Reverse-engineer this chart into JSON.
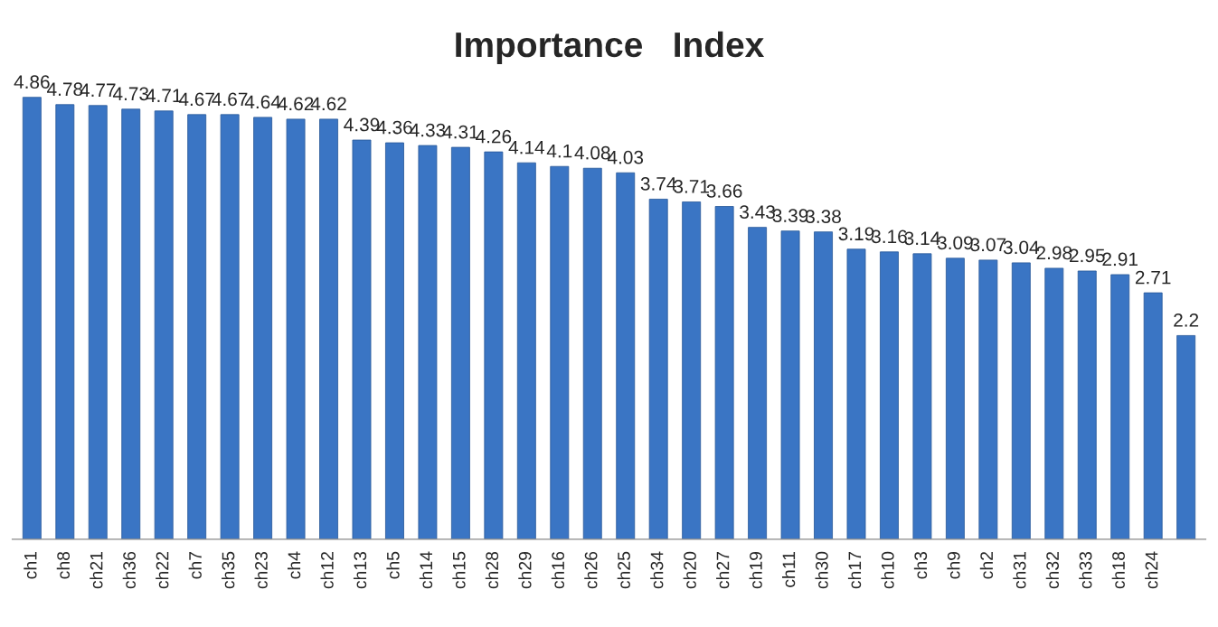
{
  "chart_data": {
    "type": "bar",
    "title": "Importance   Index",
    "categories": [
      "ch1",
      "ch8",
      "ch21",
      "ch36",
      "ch22",
      "ch7",
      "ch35",
      "ch23",
      "ch4",
      "ch12",
      "ch13",
      "ch5",
      "ch14",
      "ch15",
      "ch28",
      "ch29",
      "ch16",
      "ch26",
      "ch25",
      "ch34",
      "ch20",
      "ch27",
      "ch19",
      "ch11",
      "ch30",
      "ch17",
      "ch10",
      "ch3",
      "ch9",
      "ch2",
      "ch31",
      "ch32",
      "ch33",
      "ch18",
      "ch24",
      null
    ],
    "values": [
      4.86,
      4.78,
      4.77,
      4.73,
      4.71,
      4.67,
      4.67,
      4.64,
      4.62,
      4.62,
      4.39,
      4.36,
      4.33,
      4.31,
      4.26,
      4.14,
      4.1,
      4.08,
      4.03,
      3.74,
      3.71,
      3.66,
      3.43,
      3.39,
      3.38,
      3.19,
      3.16,
      3.14,
      3.09,
      3.07,
      3.04,
      2.98,
      2.95,
      2.91,
      2.71,
      2.24
    ],
    "value_labels": [
      "4.86",
      "4.78",
      "4.77",
      "4.73",
      "4.71",
      "4.67",
      "4.67",
      "4.64",
      "4.62",
      "4.62",
      "4.39",
      "4.36",
      "4.33",
      "4.31",
      "4.26",
      "4.14",
      "4.1",
      "4.08",
      "4.03",
      "3.74",
      "3.71",
      "3.66",
      "3.43",
      "3.39",
      "3.38",
      "3.19",
      "3.16",
      "3.14",
      "3.09",
      "3.07",
      "3.04",
      "2.98",
      "2.95",
      "2.91",
      "2.71",
      "2.2"
    ],
    "color": "#3a75c4",
    "grid": false,
    "legend": false
  }
}
